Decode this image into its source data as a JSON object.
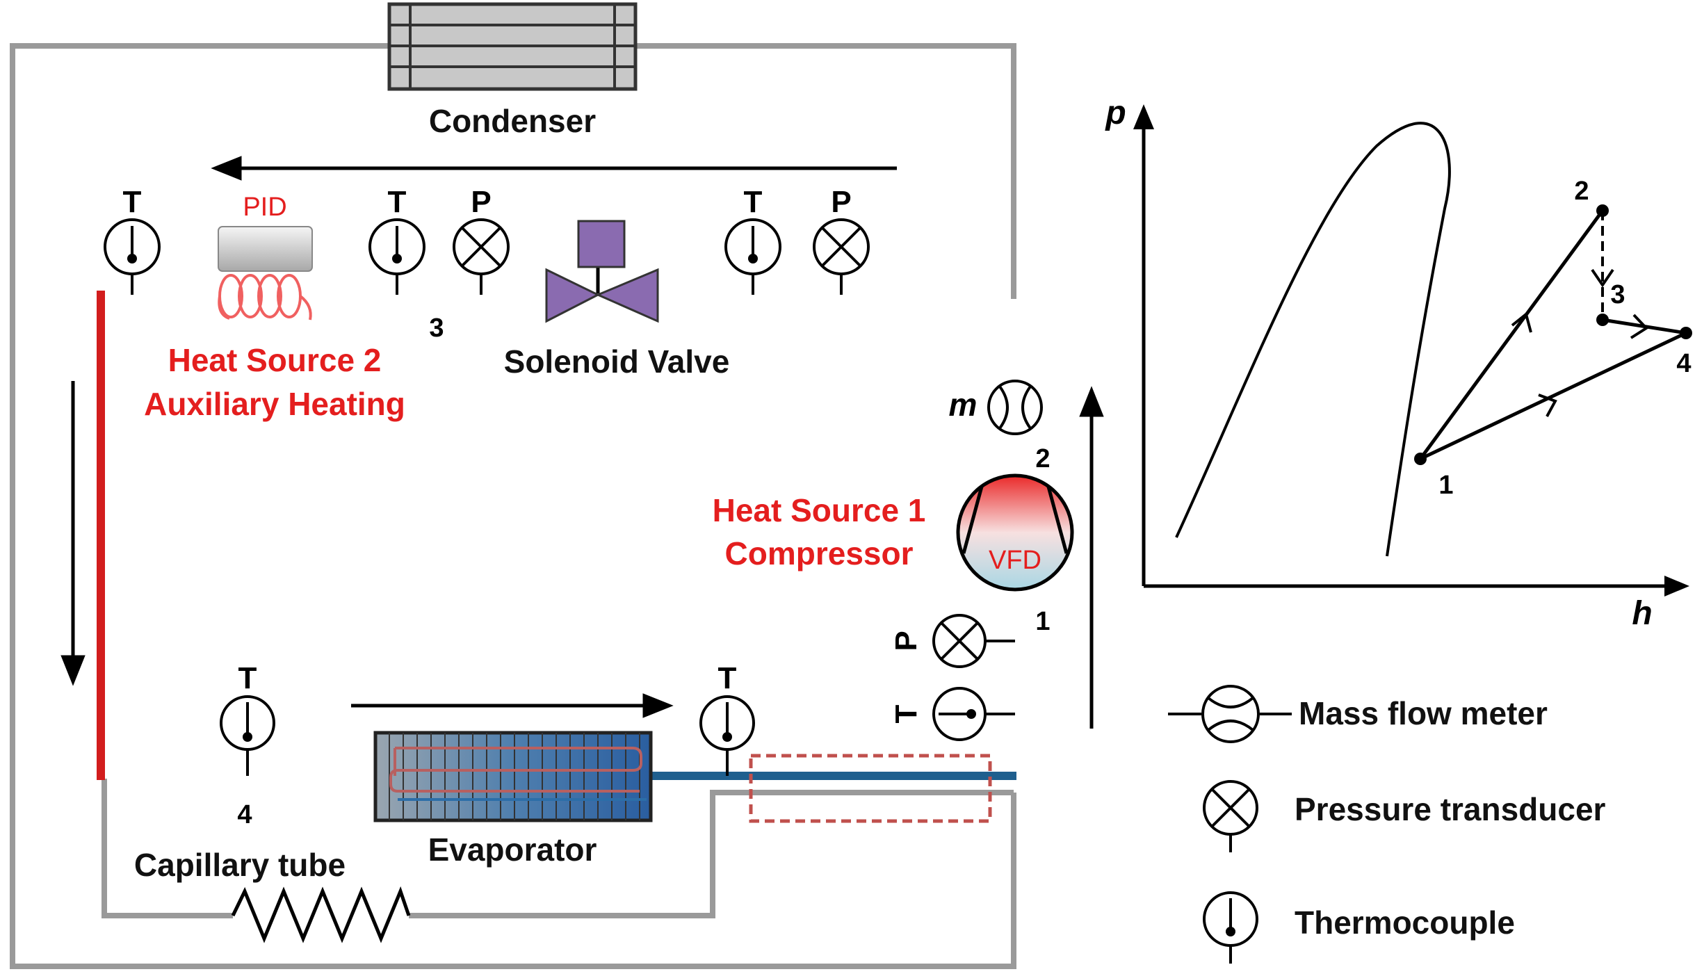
{
  "labels": {
    "condenser": "Condenser",
    "solenoid_valve": "Solenoid Valve",
    "evaporator": "Evaporator",
    "capillary_tube": "Capillary tube",
    "heat_source_2_line1": "Heat Source 2",
    "heat_source_2_line2": "Auxiliary Heating",
    "heat_source_1_line1": "Heat Source 1",
    "heat_source_1_line2": "Compressor",
    "pid": "PID",
    "vfd": "VFD",
    "mass_symbol": "m"
  },
  "sensors": {
    "T": "T",
    "P": "P"
  },
  "states": {
    "s1": "1",
    "s2": "2",
    "s3": "3",
    "s4": "4"
  },
  "ph_chart": {
    "ylabel": "p",
    "xlabel": "h",
    "points": {
      "p1": "1",
      "p2": "2",
      "p3": "3",
      "p4": "4"
    }
  },
  "legend": {
    "mass_flow": "Mass flow meter",
    "pressure": "Pressure transducer",
    "thermocouple": "Thermocouple"
  },
  "colors": {
    "hot_line": "#d61f1f",
    "cold_line": "#2c78a8",
    "heat_label": "#e41e1e",
    "valve": "#8a6bb0",
    "frame": "#9a9a9a"
  }
}
